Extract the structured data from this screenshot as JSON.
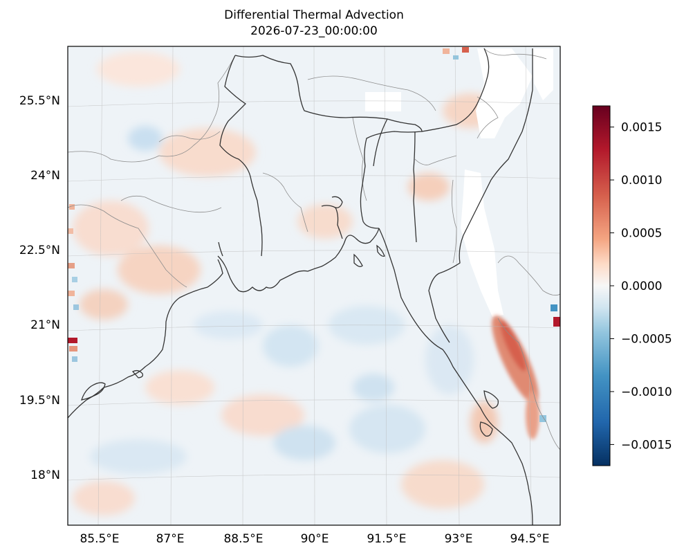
{
  "title": "Differential Thermal Advection",
  "subtitle": "2026-07-23_00:00:00",
  "map": {
    "lat_labels": [
      "25.5°N",
      "24°N",
      "22.5°N",
      "21°N",
      "19.5°N",
      "18°N"
    ],
    "lon_labels": [
      "85.5°E",
      "87°E",
      "88.5°E",
      "90°E",
      "91.5°E",
      "93°E",
      "94.5°E"
    ],
    "cmap": "RdBu_r",
    "colors": {
      "dark_red": "#67001f",
      "red": "#d6604d",
      "light_red": "#f4a582",
      "white": "#f7f7f7",
      "light_blue": "#92c5de",
      "blue": "#4393c3",
      "dark_blue": "#053061",
      "coast": "#333333",
      "borders": "#8c8c8c"
    }
  },
  "colorbar": {
    "vmin": -0.0017,
    "vmax": 0.0017,
    "tick_values": [
      0.0015,
      0.001,
      0.0005,
      0.0,
      -0.0005,
      -0.001,
      -0.0015
    ],
    "tick_labels": [
      "0.0015",
      "0.0010",
      "0.0005",
      "0.0000",
      "−0.0005",
      "−0.0010",
      "−0.0015"
    ]
  }
}
